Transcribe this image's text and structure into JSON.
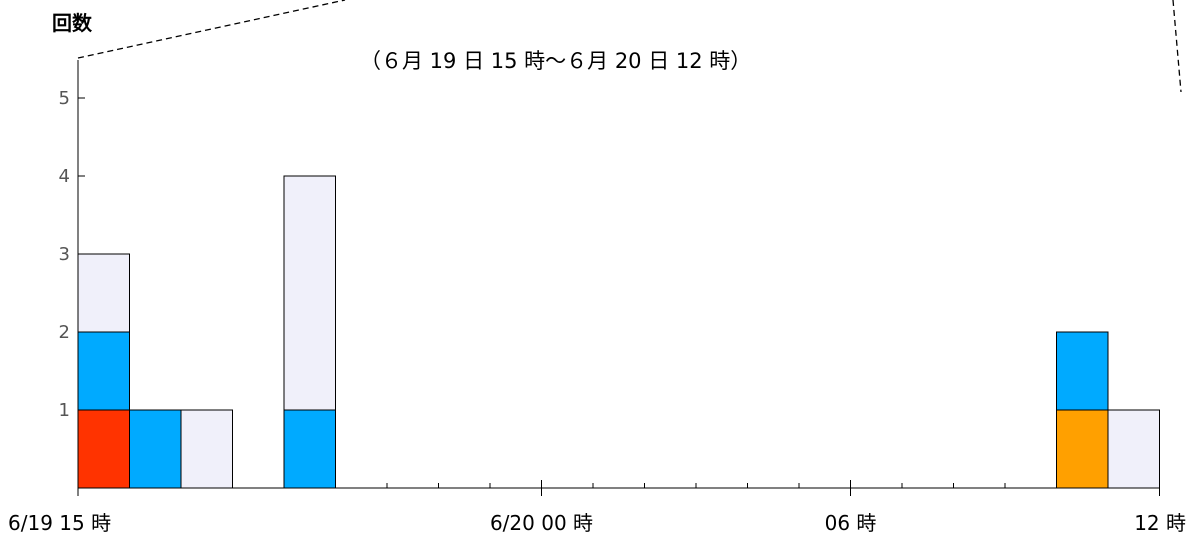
{
  "chart_data": {
    "type": "bar",
    "title": "（６月 19 日 15 時～６月 20 日 12 時）",
    "ylabel": "回数",
    "xlabel": "",
    "ylim": [
      0,
      5.5
    ],
    "yticks": [
      1,
      2,
      3,
      4,
      5
    ],
    "x_ticks_labeled": [
      {
        "hour_index": 0,
        "label": "6/19 15 時"
      },
      {
        "hour_index": 9,
        "label": "6/20 00 時"
      },
      {
        "hour_index": 15,
        "label": "06 時"
      },
      {
        "hour_index": 21,
        "label": "12 時"
      }
    ],
    "stack_colors": [
      "#ff3300",
      "#ffa000",
      "#00aaff",
      "#f0f0fa"
    ],
    "series": [
      {
        "name": "",
        "color": "#ff3300",
        "values": [
          1,
          0,
          0,
          0,
          0,
          0,
          0,
          0,
          0,
          0,
          0,
          0,
          0,
          0,
          0,
          0,
          0,
          0,
          0,
          0,
          0,
          0
        ]
      },
      {
        "name": "",
        "color": "#ffa000",
        "values": [
          0,
          0,
          0,
          0,
          0,
          0,
          0,
          0,
          0,
          0,
          0,
          0,
          0,
          0,
          0,
          0,
          0,
          0,
          0,
          1,
          0,
          0
        ]
      },
      {
        "name": "",
        "color": "#00aaff",
        "values": [
          1,
          1,
          0,
          0,
          1,
          0,
          0,
          0,
          0,
          0,
          0,
          0,
          0,
          0,
          0,
          0,
          0,
          0,
          0,
          1,
          0,
          0
        ]
      },
      {
        "name": "",
        "color": "#f0f0fa",
        "values": [
          1,
          0,
          1,
          0,
          3,
          0,
          0,
          0,
          0,
          0,
          0,
          0,
          0,
          0,
          0,
          0,
          0,
          0,
          0,
          0,
          1,
          0
        ]
      }
    ],
    "grid": false
  }
}
